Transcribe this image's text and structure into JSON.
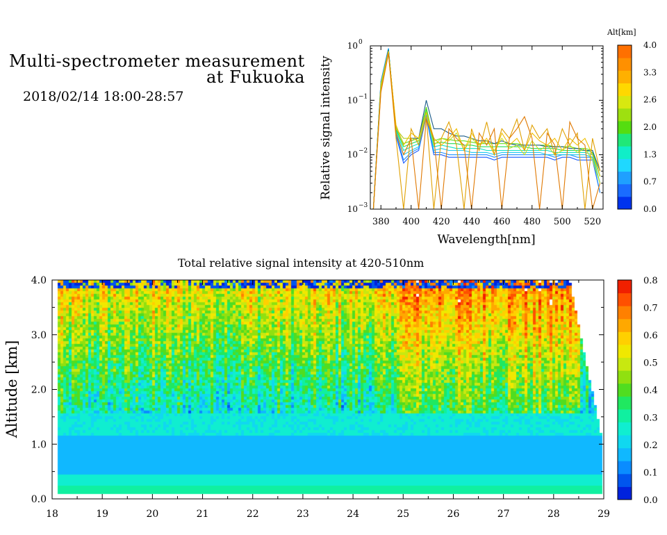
{
  "header": {
    "title_line1": "Multi-spectrometer measurement",
    "title_line2": "at Fukuoka",
    "date_range": "2018/02/14 18:00-28:57"
  },
  "chart_data": [
    {
      "type": "line",
      "title": "",
      "xlabel": "Wavelength[nm]",
      "ylabel": "Relative signal intensity",
      "xlim": [
        373,
        527
      ],
      "ylim": [
        0.001,
        1
      ],
      "log_y": true,
      "x_ticks": [
        "380",
        "400",
        "420",
        "440",
        "460",
        "480",
        "500",
        "520"
      ],
      "y_ticks": [
        "10^-3",
        "10^-2",
        "10^-1",
        "10^0"
      ],
      "x": [
        375,
        380,
        385,
        390,
        395,
        400,
        405,
        410,
        415,
        420,
        425,
        430,
        435,
        440,
        445,
        450,
        455,
        460,
        465,
        470,
        475,
        480,
        485,
        490,
        495,
        500,
        505,
        510,
        515,
        520,
        525
      ],
      "series": [
        {
          "color": "#1a5cff",
          "values": [
            0.001,
            0.22,
            0.9,
            0.022,
            0.007,
            0.01,
            0.012,
            0.05,
            0.01,
            0.01,
            0.009,
            0.009,
            0.009,
            0.009,
            0.009,
            0.009,
            0.008,
            0.009,
            0.009,
            0.009,
            0.009,
            0.009,
            0.009,
            0.009,
            0.008,
            0.009,
            0.009,
            0.008,
            0.008,
            0.008,
            0.002
          ]
        },
        {
          "color": "#1f90ff",
          "values": [
            0.001,
            0.22,
            0.9,
            0.024,
            0.008,
            0.011,
            0.013,
            0.055,
            0.011,
            0.011,
            0.01,
            0.01,
            0.01,
            0.01,
            0.01,
            0.01,
            0.009,
            0.01,
            0.01,
            0.01,
            0.01,
            0.01,
            0.01,
            0.01,
            0.009,
            0.01,
            0.01,
            0.009,
            0.009,
            0.009,
            0.002
          ]
        },
        {
          "color": "#1fc8ee",
          "values": [
            0.001,
            0.2,
            0.88,
            0.026,
            0.01,
            0.012,
            0.014,
            0.06,
            0.012,
            0.013,
            0.012,
            0.012,
            0.012,
            0.011,
            0.011,
            0.011,
            0.01,
            0.011,
            0.011,
            0.011,
            0.011,
            0.011,
            0.011,
            0.01,
            0.01,
            0.01,
            0.01,
            0.01,
            0.01,
            0.009,
            0.003
          ]
        },
        {
          "color": "#10e0c0",
          "values": [
            0.001,
            0.2,
            0.85,
            0.028,
            0.012,
            0.014,
            0.016,
            0.065,
            0.014,
            0.015,
            0.014,
            0.013,
            0.013,
            0.013,
            0.013,
            0.012,
            0.012,
            0.012,
            0.012,
            0.012,
            0.012,
            0.012,
            0.012,
            0.012,
            0.011,
            0.011,
            0.011,
            0.011,
            0.011,
            0.01,
            0.003
          ]
        },
        {
          "color": "#22dd55",
          "values": [
            0.001,
            0.18,
            0.85,
            0.03,
            0.014,
            0.016,
            0.018,
            0.07,
            0.016,
            0.017,
            0.016,
            0.016,
            0.015,
            0.015,
            0.014,
            0.014,
            0.014,
            0.014,
            0.014,
            0.014,
            0.014,
            0.013,
            0.013,
            0.013,
            0.013,
            0.012,
            0.012,
            0.012,
            0.012,
            0.011,
            0.004
          ]
        },
        {
          "color": "#66dd22",
          "values": [
            0.001,
            0.18,
            0.82,
            0.032,
            0.016,
            0.018,
            0.02,
            0.075,
            0.018,
            0.02,
            0.019,
            0.018,
            0.018,
            0.017,
            0.016,
            0.016,
            0.016,
            0.016,
            0.016,
            0.016,
            0.015,
            0.015,
            0.015,
            0.015,
            0.014,
            0.014,
            0.014,
            0.013,
            0.013,
            0.012,
            0.004
          ]
        },
        {
          "color": "#1a5c88",
          "values": [
            0.001,
            0.2,
            0.85,
            0.03,
            0.02,
            0.02,
            0.02,
            0.1,
            0.03,
            0.03,
            0.025,
            0.022,
            0.022,
            0.02,
            0.018,
            0.018,
            0.016,
            0.018,
            0.016,
            0.015,
            0.015,
            0.015,
            0.015,
            0.014,
            0.014,
            0.014,
            0.013,
            0.013,
            0.012,
            0.012,
            0.005
          ]
        },
        {
          "color": "#c8dd20",
          "values": [
            0.001,
            0.2,
            0.8,
            0.03,
            0.02,
            0.02,
            0.018,
            0.06,
            0.015,
            0.02,
            0.018,
            0.025,
            0.012,
            0.02,
            0.015,
            0.018,
            0.012,
            0.02,
            0.013,
            0.015,
            0.01,
            0.018,
            0.012,
            0.015,
            0.01,
            0.012,
            0.015,
            0.011,
            0.013,
            0.008,
            0.003
          ]
        },
        {
          "color": "#f0c000",
          "values": [
            0.001,
            0.16,
            0.78,
            0.035,
            0.015,
            0.025,
            0.02,
            0.06,
            0.02,
            0.015,
            0.02,
            0.03,
            0.012,
            0.025,
            0.015,
            0.02,
            0.01,
            0.025,
            0.015,
            0.02,
            0.012,
            0.025,
            0.018,
            0.015,
            0.02,
            0.012,
            0.02,
            0.015,
            0.02,
            0.01,
            0.004
          ]
        },
        {
          "color": "#e0a000",
          "values": [
            0.001,
            0.15,
            0.75,
            0.02,
            0.001,
            0.03,
            0.015,
            0.05,
            0.001,
            0.02,
            0.04,
            0.015,
            0.001,
            0.03,
            0.012,
            0.04,
            0.01,
            0.03,
            0.02,
            0.045,
            0.012,
            0.035,
            0.02,
            0.03,
            0.01,
            0.03,
            0.015,
            0.025,
            0.001,
            0.02,
            0.005
          ]
        },
        {
          "color": "#e07800",
          "values": [
            0.001,
            0.14,
            0.72,
            0.025,
            0.01,
            0.02,
            0.001,
            0.045,
            0.02,
            0.001,
            0.03,
            0.02,
            0.015,
            0.001,
            0.025,
            0.015,
            0.03,
            0.001,
            0.02,
            0.03,
            0.05,
            0.02,
            0.001,
            0.025,
            0.015,
            0.001,
            0.04,
            0.02,
            0.015,
            0.001,
            0.003
          ]
        }
      ],
      "colorbar": {
        "label": "Alt[km]",
        "ticks": [
          "0.0",
          "0.7",
          "1.3",
          "2.0",
          "2.6",
          "3.3",
          "4.0"
        ],
        "colors": [
          "#0033ee",
          "#1a6cff",
          "#1fa0ff",
          "#1fd8ff",
          "#10eec8",
          "#20e878",
          "#55dd10",
          "#9ee010",
          "#d8e810",
          "#ffd800",
          "#ffb000",
          "#ff9000",
          "#ff7000"
        ]
      }
    },
    {
      "type": "heatmap",
      "title": "Total relative signal intensity at 420-510nm",
      "xlabel": "",
      "ylabel": "Altitude [km]",
      "xlim": [
        18,
        29
      ],
      "ylim": [
        0,
        4.0
      ],
      "x_ticks": [
        "18",
        "19",
        "20",
        "21",
        "22",
        "23",
        "24",
        "25",
        "26",
        "27",
        "28",
        "29"
      ],
      "y_ticks": [
        "0.0",
        "1.0",
        "2.0",
        "3.0",
        "4.0"
      ],
      "data_coverage_hours": [
        18.1,
        28.95
      ],
      "colorbar": {
        "range": [
          0,
          0.8
        ],
        "ticks": [
          "0.0",
          "0.1",
          "0.2",
          "0.3",
          "0.4",
          "0.5",
          "0.6",
          "0.7",
          "0.8"
        ],
        "colors": [
          "#0022dd",
          "#0055ee",
          "#0a8cff",
          "#10b8ff",
          "#10d8f0",
          "#10eed0",
          "#10f0a0",
          "#20e860",
          "#50dd20",
          "#90e010",
          "#c8e810",
          "#f0e800",
          "#ffd000",
          "#ffa800",
          "#ff8000",
          "#ff5000",
          "#f02000"
        ]
      }
    }
  ]
}
